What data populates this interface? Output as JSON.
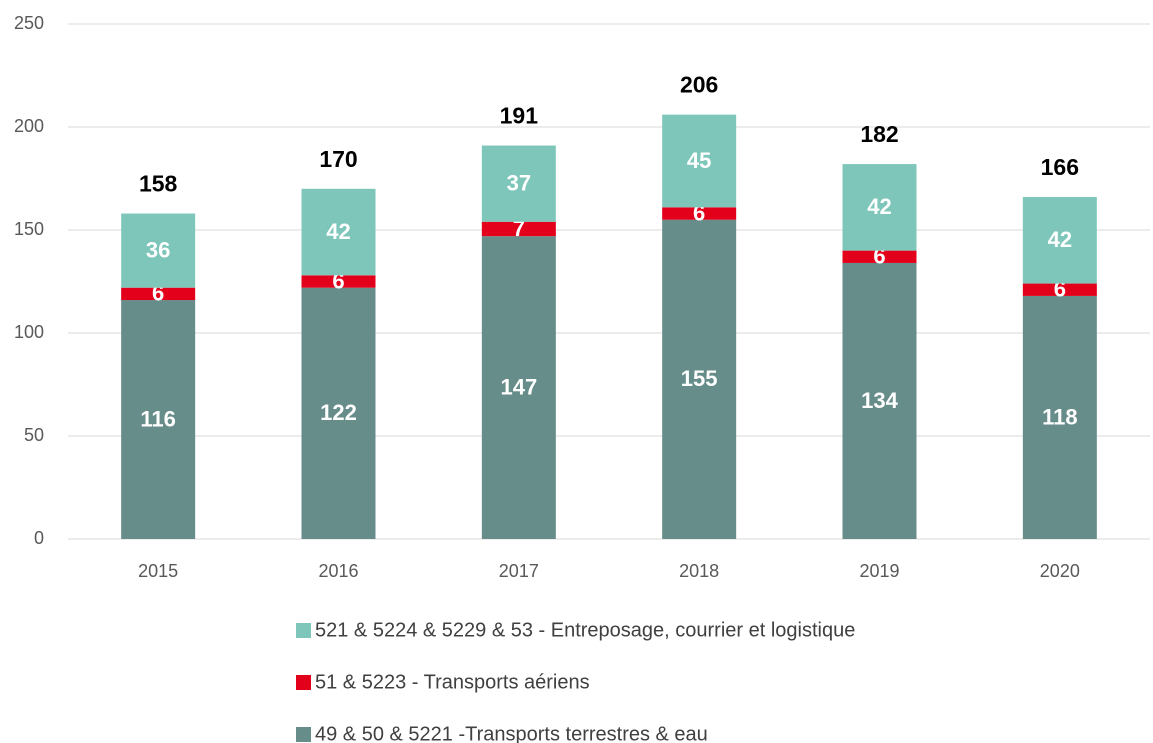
{
  "chart_data": {
    "type": "stacked_bar",
    "categories": [
      "2015",
      "2016",
      "2017",
      "2018",
      "2019",
      "2020"
    ],
    "series": [
      {
        "name": "49 & 50 & 5221 -Transports terrestres & eau",
        "color": "#678d8b",
        "values": [
          116,
          122,
          147,
          155,
          134,
          118
        ]
      },
      {
        "name": "51 & 5223 - Transports aériens",
        "color": "#e3001b",
        "values": [
          6,
          6,
          7,
          6,
          6,
          6
        ]
      },
      {
        "name": "521 & 5224 & 5229 & 53 - Entreposage, courrier et logistique",
        "color": "#7ec6ba",
        "values": [
          36,
          42,
          37,
          45,
          42,
          42
        ]
      }
    ],
    "totals": [
      158,
      170,
      191,
      206,
      182,
      166
    ],
    "ylim": [
      0,
      250
    ],
    "yticks": [
      0,
      50,
      100,
      150,
      200,
      250
    ],
    "grid": true,
    "legend": "bottom"
  }
}
